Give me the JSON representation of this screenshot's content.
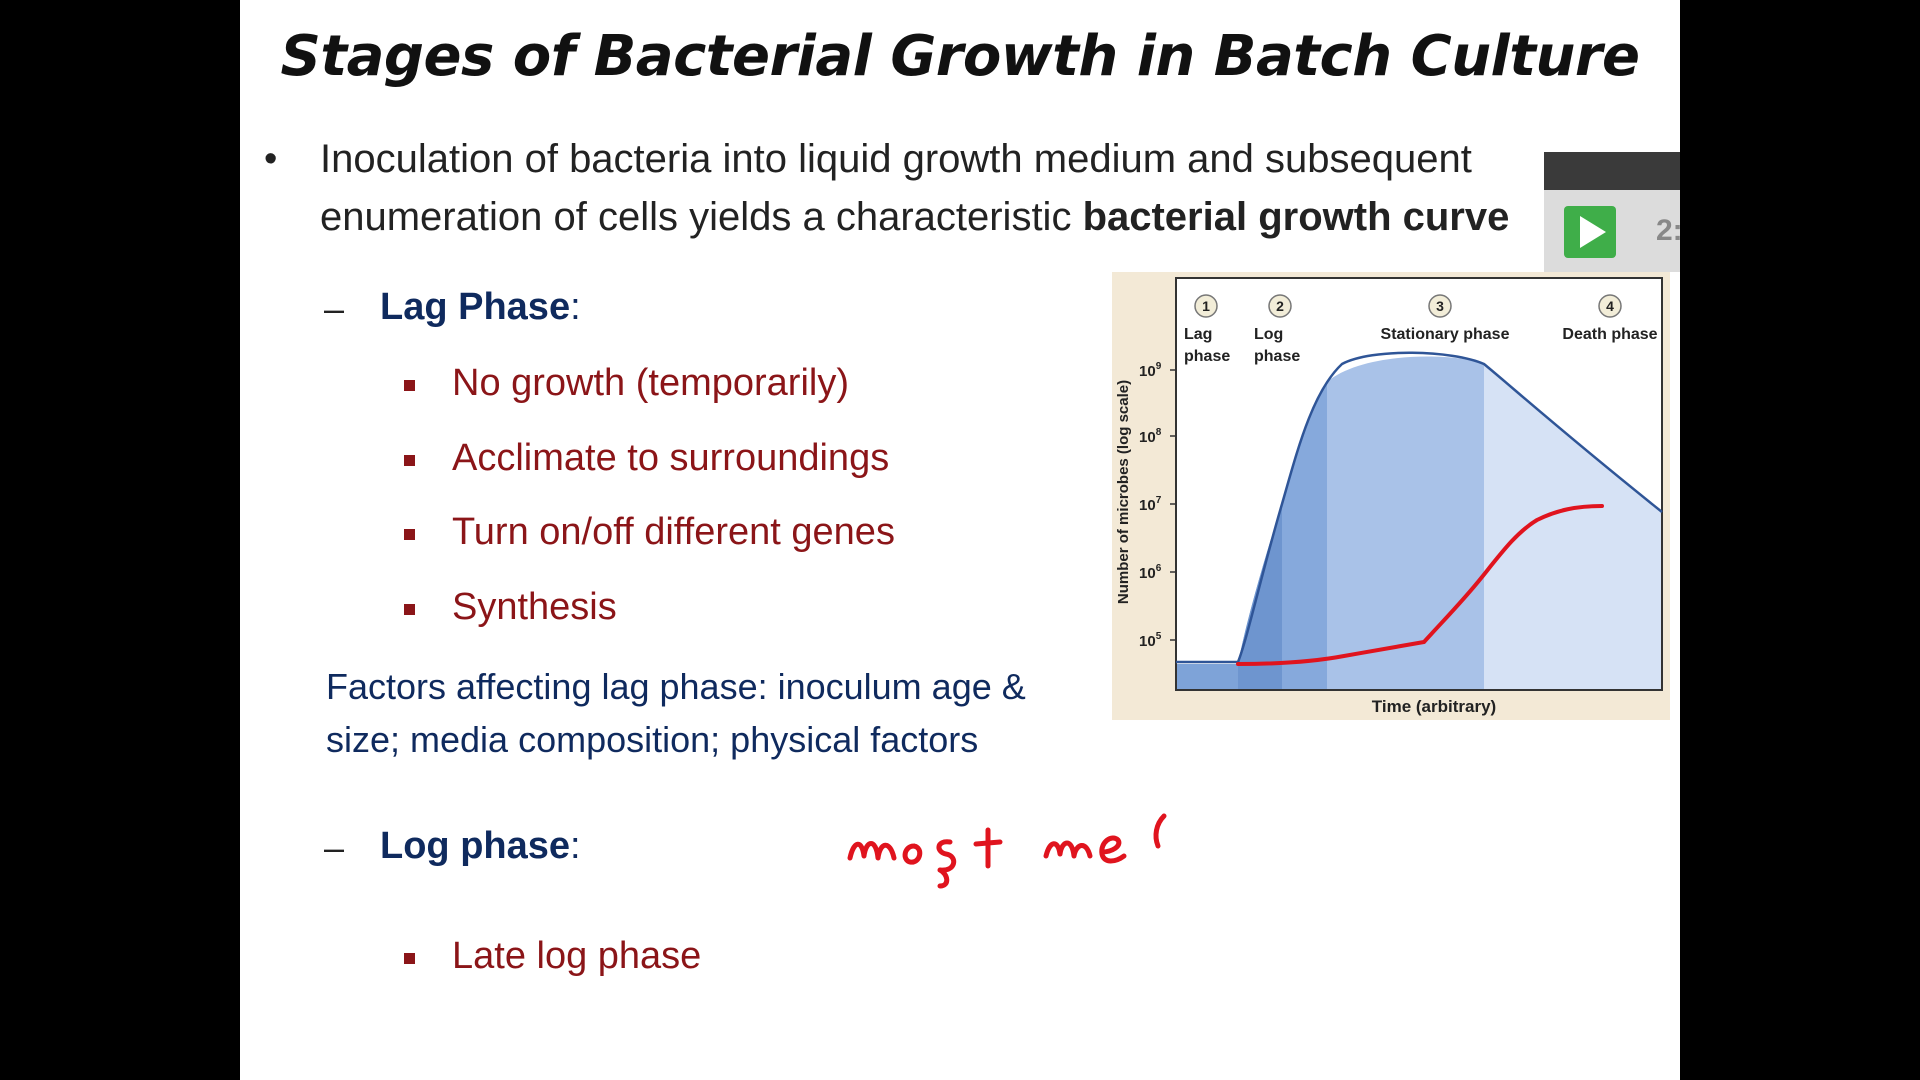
{
  "slide": {
    "title": "Stages of Bacterial Growth in Batch Culture",
    "bullet": {
      "line1": "Inoculation of bacteria into liquid growth medium and subsequent",
      "line2_prefix": "enumeration of cells yields a characteristic ",
      "line2_bold": "bacterial growth curve"
    },
    "lag_phase": {
      "label": "Lag Phase",
      "suffix": ":",
      "items": [
        "No growth (temporarily)",
        "Acclimate to surroundings",
        "Turn on/off different genes",
        "Synthesis"
      ]
    },
    "factors": {
      "line1": "Factors affecting lag phase: inoculum age &",
      "line2": "size; media composition; physical factors"
    },
    "log_phase": {
      "label": "Log phase",
      "suffix": ":",
      "items": [
        "Late log phase"
      ]
    }
  },
  "figure": {
    "ylabel": "Number of microbes (log scale)",
    "xlabel": "Time (arbitrary)",
    "y_ticks": [
      "10",
      "10",
      "10",
      "10",
      "10"
    ],
    "y_exponents": [
      "9",
      "8",
      "7",
      "6",
      "5"
    ],
    "phases": [
      {
        "num": "1",
        "line1": "Lag",
        "line2": "phase"
      },
      {
        "num": "2",
        "line1": "Log",
        "line2": "phase"
      },
      {
        "num": "3",
        "line1": "Stationary phase",
        "line2": ""
      },
      {
        "num": "4",
        "line1": "Death phase",
        "line2": ""
      }
    ],
    "colors": {
      "lag": "#7ea3d8",
      "log": "#9db9e3",
      "stationary": "#bcd0ee",
      "death": "#dae5f6",
      "curve": "#2f5597",
      "annotation": "#e0141e"
    }
  },
  "video_overlay": {
    "time_text": "2:"
  },
  "icons": {
    "play": "play-icon"
  }
}
